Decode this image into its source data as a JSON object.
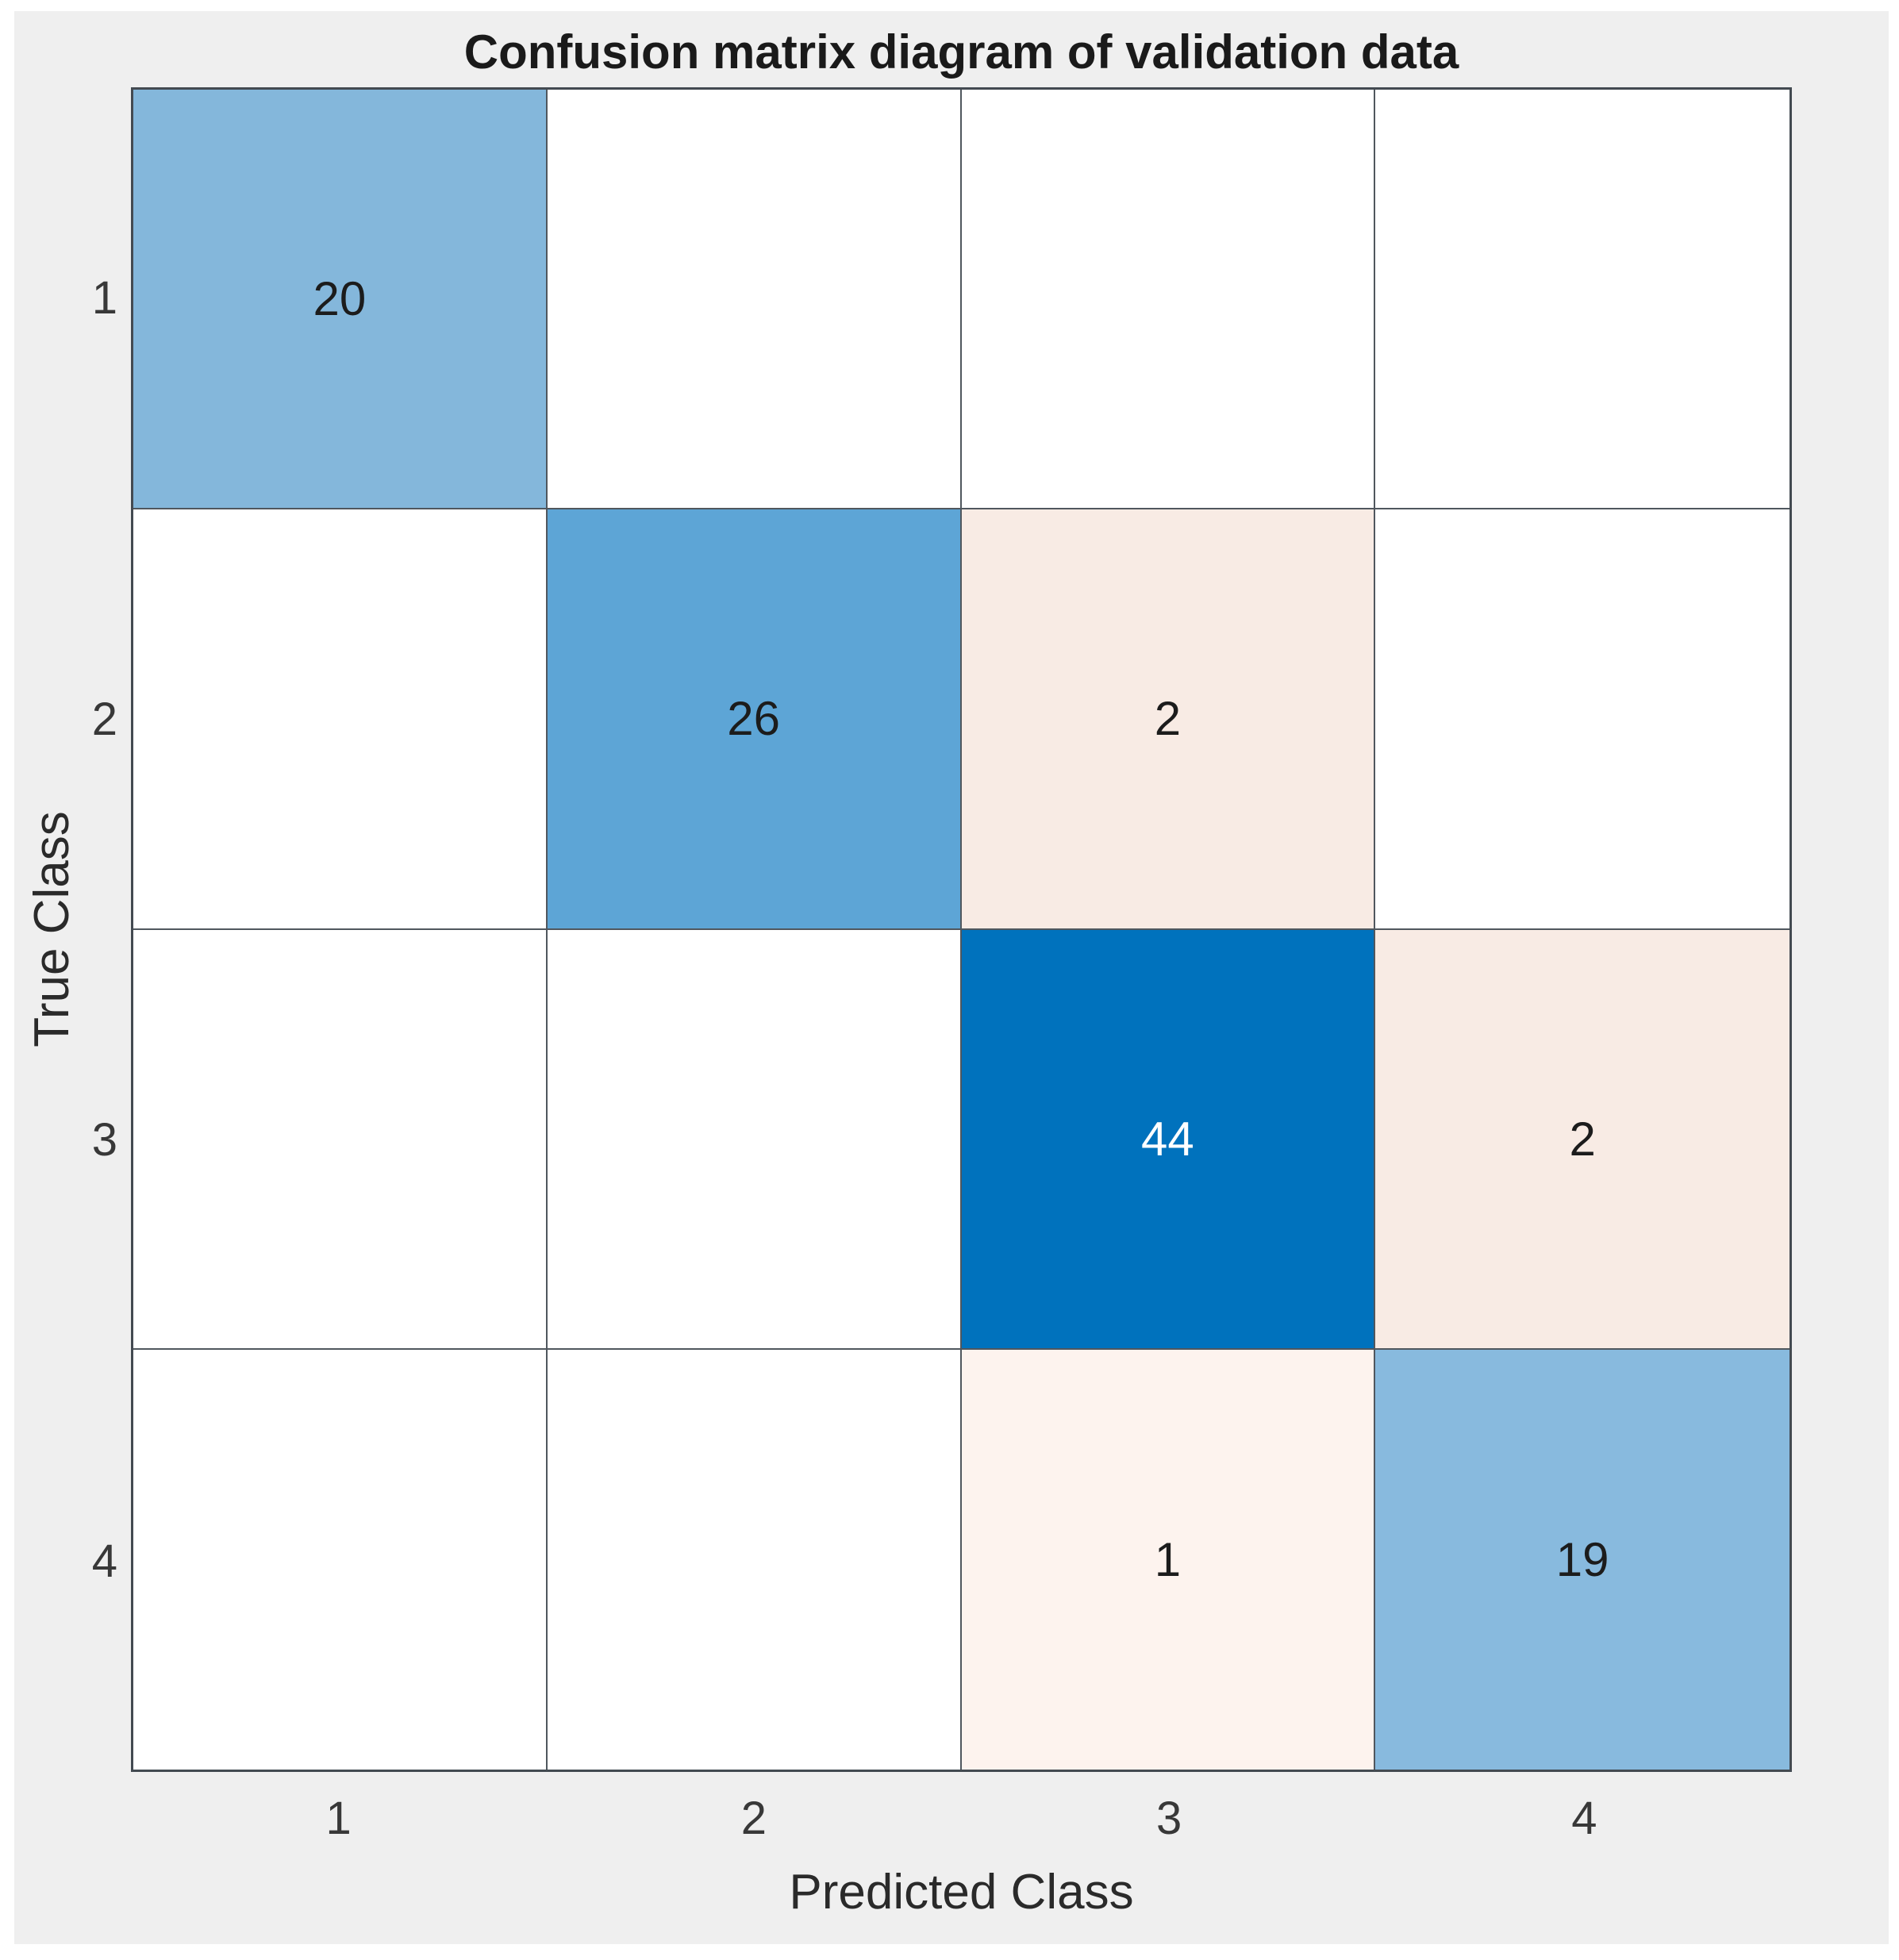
{
  "chart_data": {
    "type": "heatmap",
    "subtype": "confusion-matrix",
    "title": "Confusion matrix diagram of validation data",
    "xlabel": "Predicted Class",
    "ylabel": "True Class",
    "x_tick_labels": [
      "1",
      "2",
      "3",
      "4"
    ],
    "y_tick_labels": [
      "1",
      "2",
      "3",
      "4"
    ],
    "matrix": [
      [
        20,
        0,
        0,
        0
      ],
      [
        0,
        26,
        2,
        0
      ],
      [
        0,
        0,
        44,
        2
      ],
      [
        0,
        0,
        1,
        19
      ]
    ],
    "cell_labels": [
      [
        "20",
        "",
        "",
        ""
      ],
      [
        "",
        "26",
        "2",
        ""
      ],
      [
        "",
        "",
        "44",
        "2"
      ],
      [
        "",
        "",
        "1",
        "19"
      ]
    ],
    "cell_colors": [
      [
        "#84b7db",
        "#ffffff",
        "#ffffff",
        "#ffffff"
      ],
      [
        "#ffffff",
        "#5da5d6",
        "#f8ebe4",
        "#ffffff"
      ],
      [
        "#ffffff",
        "#ffffff",
        "#0072bd",
        "#f8ebe4"
      ],
      [
        "#ffffff",
        "#ffffff",
        "#fdf3ee",
        "#88bade"
      ]
    ],
    "cell_text_colors": [
      [
        "#1c1c1c",
        "#1c1c1c",
        "#1c1c1c",
        "#1c1c1c"
      ],
      [
        "#1c1c1c",
        "#1c1c1c",
        "#1c1c1c",
        "#1c1c1c"
      ],
      [
        "#1c1c1c",
        "#1c1c1c",
        "#ffffff",
        "#1c1c1c"
      ],
      [
        "#1c1c1c",
        "#1c1c1c",
        "#1c1c1c",
        "#1c1c1c"
      ]
    ],
    "value_min": 0,
    "value_max": 44,
    "grid_on": true,
    "legend": "none"
  },
  "colors": {
    "figure_background": "#efefef",
    "page_background": "#ffffff",
    "grid_line": "#50575e",
    "axes_border": "#434a51",
    "diagonal_base": "#0072bd",
    "off_diagonal_base": "#d95319",
    "tick_text": "#383838",
    "title_text": "#1a1a1a"
  }
}
